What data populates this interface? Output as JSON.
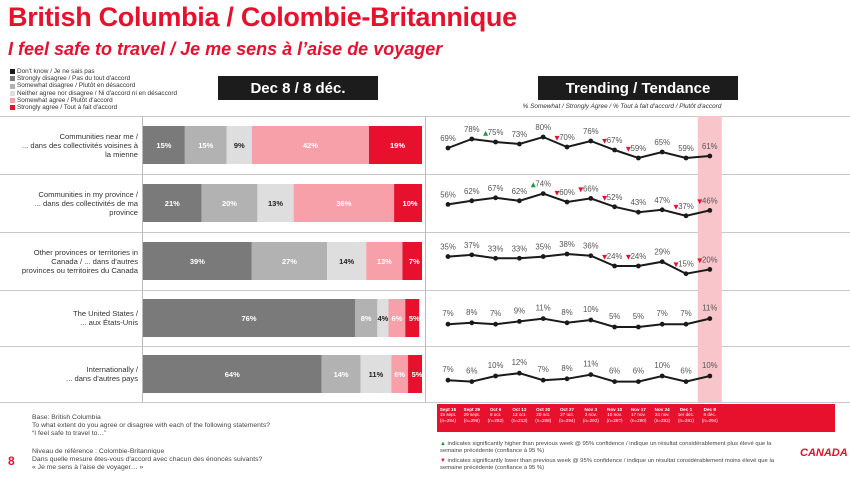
{
  "title": "British Columbia / Colombie-Britannique",
  "subtitle": "I feel safe to travel / Je me sens à l’aise de voyager",
  "legend": [
    {
      "label": "Don't know / Je ne sais pas",
      "color": "#1a1a1a"
    },
    {
      "label": "Strongly disagree / Pas du tout d'accord",
      "color": "#7a7a7a"
    },
    {
      "label": "Somewhat disagree / Plutôt en désaccord",
      "color": "#b2b2b2"
    },
    {
      "label": "Neither agree nor disagree / Ni d'accord ni en désaccord",
      "color": "#dedede"
    },
    {
      "label": "Somewhat agree / Plutôt d'accord",
      "color": "#f7a0aa"
    },
    {
      "label": "Strongly agree / Tout à fait d'accord",
      "color": "#e8112d"
    }
  ],
  "left_panel_title": "Dec 8 / 8 déc.",
  "right_panel_title": "Trending / Tendance",
  "trend_subtitle": "% Somewhat / Strongly Agree / % Tout à fait d'accord / Plutôt d'accord",
  "rows": [
    {
      "label": [
        "Communities near me /",
        "... dans des collectivités voisines à",
        "la mienne"
      ]
    },
    {
      "label": [
        "Communities in my province /",
        "... dans des collectivités de ma",
        "province"
      ]
    },
    {
      "label": [
        "Other provinces or territories in",
        "Canada / ... dans d'autres",
        "provinces ou territoires du Canada"
      ]
    },
    {
      "label": [
        "The United States /",
        "... aux États-Unis"
      ]
    },
    {
      "label": [
        "Internationally /",
        "... dans d'autres pays"
      ]
    }
  ],
  "chart_data": [
    {
      "type": "bar",
      "orientation": "horizontal",
      "stacked": true,
      "title": "Dec 8 / 8 déc.",
      "categories": [
        "Communities near me",
        "Communities in my province",
        "Other provinces or territories in Canada",
        "The United States",
        "Internationally"
      ],
      "series": [
        {
          "name": "Strongly disagree / Pas du tout d'accord",
          "values": [
            15,
            21,
            39,
            76,
            64
          ],
          "labels": [
            "15%",
            "21%",
            "39%",
            "76%",
            "64%"
          ]
        },
        {
          "name": "Somewhat disagree / Plutôt en désaccord",
          "values": [
            15,
            20,
            27,
            8,
            14
          ],
          "labels": [
            "15%",
            "20%",
            "27%",
            "8%",
            "14%"
          ]
        },
        {
          "name": "Neither agree nor disagree / Ni d'accord ni en désaccord",
          "values": [
            9,
            13,
            14,
            4,
            11
          ],
          "labels": [
            "9%",
            "13%",
            "14%",
            "4%",
            "11%"
          ]
        },
        {
          "name": "Somewhat agree / Plutôt d'accord",
          "values": [
            42,
            36,
            13,
            6,
            6
          ],
          "labels": [
            "42%",
            "36%",
            "13%",
            "6%",
            "6%"
          ]
        },
        {
          "name": "Strongly agree / Tout à fait d'accord",
          "values": [
            19,
            10,
            7,
            5,
            5
          ],
          "labels": [
            "19%",
            "10%",
            "7%",
            "5%",
            "5%"
          ]
        }
      ]
    },
    {
      "type": "line",
      "title": "Trending / Tendance",
      "dates": [
        [
          "Sept 15",
          "15 sept.",
          "(n=284)"
        ],
        [
          "Sept 29",
          "29 sept.",
          "(n=296)"
        ],
        [
          "Oct 6",
          "6 oct.",
          "(n=282)"
        ],
        [
          "Oct 13",
          "13 oct.",
          "(n=213)"
        ],
        [
          "Oct 20",
          "20 oct.",
          "(n=288)"
        ],
        [
          "Oct 27",
          "27 oct.",
          "(n=294)"
        ],
        [
          "Nov 3",
          "3 nov.",
          "(n=292)"
        ],
        [
          "Nov 10",
          "10 nov.",
          "(n=287)"
        ],
        [
          "Nov 17",
          "17 nov.",
          "(n=290)"
        ],
        [
          "Nov 24",
          "24 nov.",
          "(n=292)"
        ],
        [
          "Dec 1",
          "1er déc.",
          "(n=291)"
        ],
        [
          "Dec 8",
          "8 déc.",
          "(n=294)"
        ]
      ],
      "series": [
        {
          "values": [
            69,
            78,
            75,
            73,
            80,
            70,
            76,
            67,
            59,
            65,
            59,
            61
          ],
          "markers": [
            "",
            "",
            "up",
            "",
            "",
            "down",
            "",
            "down",
            "down",
            "",
            "",
            ""
          ]
        },
        {
          "values": [
            56,
            62,
            67,
            62,
            74,
            60,
            66,
            52,
            43,
            47,
            37,
            46
          ],
          "markers": [
            "",
            "",
            "",
            "",
            "up",
            "down",
            "down",
            "down",
            "",
            "",
            "down",
            "down"
          ]
        },
        {
          "values": [
            35,
            37,
            33,
            33,
            35,
            38,
            36,
            24,
            24,
            29,
            15,
            20
          ],
          "markers": [
            "",
            "",
            "",
            "",
            "",
            "",
            "",
            "down",
            "down",
            "",
            "down",
            "down"
          ]
        },
        {
          "values": [
            7,
            8,
            7,
            9,
            11,
            8,
            10,
            5,
            5,
            7,
            7,
            11
          ],
          "markers": [
            "",
            "",
            "",
            "",
            "",
            "",
            "",
            "",
            "",
            "",
            "",
            ""
          ]
        },
        {
          "values": [
            7,
            6,
            10,
            12,
            7,
            8,
            11,
            6,
            6,
            10,
            6,
            10
          ],
          "markers": [
            "",
            "",
            "",
            "",
            "",
            "",
            "",
            "",
            "",
            "",
            "",
            ""
          ]
        }
      ],
      "highlight": "Dec 8"
    }
  ],
  "footer": {
    "base_lines": [
      "Base: British Columbia",
      "To what extent do you agree or disagree with each of the following statements?",
      "“I feel safe to travel to…”"
    ],
    "base_fr_lines": [
      "Niveau de référence : Colombie-Britannique",
      "Dans quelle mesure êtes-vous d'accord avec chacun des énoncés suivants?",
      "« Je me sens à l'aise de voyager… »"
    ],
    "note_up": "indicates significantly higher than previous week @ 95% confidence / indique un résultat considérablement plus élevé que la semaine précédente (confiance à 95 %)",
    "note_down": "indicates significantly lower than previous week @ 95% confidence / indique un résultat considérablement moins élevé que la semaine précédente (confiance à 95 %)",
    "page_number": "8",
    "logo": "CANADA"
  },
  "colors": {
    "red": "#e8112d",
    "up": "#1a9a3a",
    "down": "#e8112d",
    "highlight": "#f8c5cb"
  }
}
